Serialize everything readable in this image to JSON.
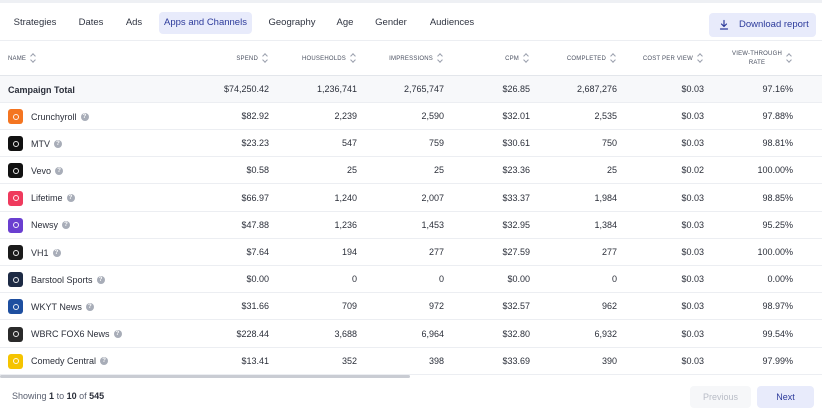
{
  "tabs": [
    {
      "label": "Strategies",
      "active": false
    },
    {
      "label": "Dates",
      "active": false
    },
    {
      "label": "Ads",
      "active": false
    },
    {
      "label": "Apps and Channels",
      "active": true
    },
    {
      "label": "Geography",
      "active": false
    },
    {
      "label": "Age",
      "active": false
    },
    {
      "label": "Gender",
      "active": false
    },
    {
      "label": "Audiences",
      "active": false
    }
  ],
  "download_label": "Download report",
  "columns": {
    "name": "NAME",
    "spend": "SPEND",
    "households": "HOUSEHOLDS",
    "impressions": "IMPRESSIONS",
    "cpm": "CPM",
    "completed": "COMPLETED",
    "cost_per_view": "COST PER VIEW",
    "vtr_line1": "VIEW-THROUGH",
    "vtr_line2": "RATE"
  },
  "total_row": {
    "name": "Campaign Total",
    "spend": "$74,250.42",
    "households": "1,236,741",
    "impressions": "2,765,747",
    "cpm": "$26.85",
    "completed": "2,687,276",
    "cost_per_view": "$0.03",
    "vtr": "97.16%"
  },
  "rows": [
    {
      "name": "Crunchyroll",
      "logo_color": "#f47521",
      "logo_icon": "crunchyroll-logo",
      "spend": "$82.92",
      "households": "2,239",
      "impressions": "2,590",
      "cpm": "$32.01",
      "completed": "2,535",
      "cost_per_view": "$0.03",
      "vtr": "97.88%"
    },
    {
      "name": "MTV",
      "logo_color": "#111111",
      "logo_icon": "mtv-logo",
      "spend": "$23.23",
      "households": "547",
      "impressions": "759",
      "cpm": "$30.61",
      "completed": "750",
      "cost_per_view": "$0.03",
      "vtr": "98.81%"
    },
    {
      "name": "Vevo",
      "logo_color": "#111111",
      "logo_icon": "vevo-logo",
      "spend": "$0.58",
      "households": "25",
      "impressions": "25",
      "cpm": "$23.36",
      "completed": "25",
      "cost_per_view": "$0.02",
      "vtr": "100.00%"
    },
    {
      "name": "Lifetime",
      "logo_color": "#ef3a5d",
      "logo_icon": "lifetime-logo",
      "spend": "$66.97",
      "households": "1,240",
      "impressions": "2,007",
      "cpm": "$33.37",
      "completed": "1,984",
      "cost_per_view": "$0.03",
      "vtr": "98.85%"
    },
    {
      "name": "Newsy",
      "logo_color": "#6a3fd0",
      "logo_icon": "newsy-logo",
      "spend": "$47.88",
      "households": "1,236",
      "impressions": "1,453",
      "cpm": "$32.95",
      "completed": "1,384",
      "cost_per_view": "$0.03",
      "vtr": "95.25%"
    },
    {
      "name": "VH1",
      "logo_color": "#1a1a1a",
      "logo_icon": "vh1-logo",
      "spend": "$7.64",
      "households": "194",
      "impressions": "277",
      "cpm": "$27.59",
      "completed": "277",
      "cost_per_view": "$0.03",
      "vtr": "100.00%"
    },
    {
      "name": "Barstool Sports",
      "logo_color": "#1d2a44",
      "logo_icon": "barstool-logo",
      "spend": "$0.00",
      "households": "0",
      "impressions": "0",
      "cpm": "$0.00",
      "completed": "0",
      "cost_per_view": "$0.03",
      "vtr": "0.00%"
    },
    {
      "name": "WKYT News",
      "logo_color": "#1e4fa0",
      "logo_icon": "wkyt-logo",
      "spend": "$31.66",
      "households": "709",
      "impressions": "972",
      "cpm": "$32.57",
      "completed": "962",
      "cost_per_view": "$0.03",
      "vtr": "98.97%"
    },
    {
      "name": "WBRC FOX6 News",
      "logo_color": "#2a2a2a",
      "logo_icon": "wbrc-logo",
      "spend": "$228.44",
      "households": "3,688",
      "impressions": "6,964",
      "cpm": "$32.80",
      "completed": "6,932",
      "cost_per_view": "$0.03",
      "vtr": "99.54%"
    },
    {
      "name": "Comedy Central",
      "logo_color": "#f5c400",
      "logo_icon": "comedy-central-logo",
      "spend": "$13.41",
      "households": "352",
      "impressions": "398",
      "cpm": "$33.69",
      "completed": "390",
      "cost_per_view": "$0.03",
      "vtr": "97.99%"
    }
  ],
  "pagination": {
    "prefix": "Showing",
    "from": "1",
    "to_word": "to",
    "to": "10",
    "of_word": "of",
    "total": "545",
    "prev_label": "Previous",
    "next_label": "Next"
  }
}
